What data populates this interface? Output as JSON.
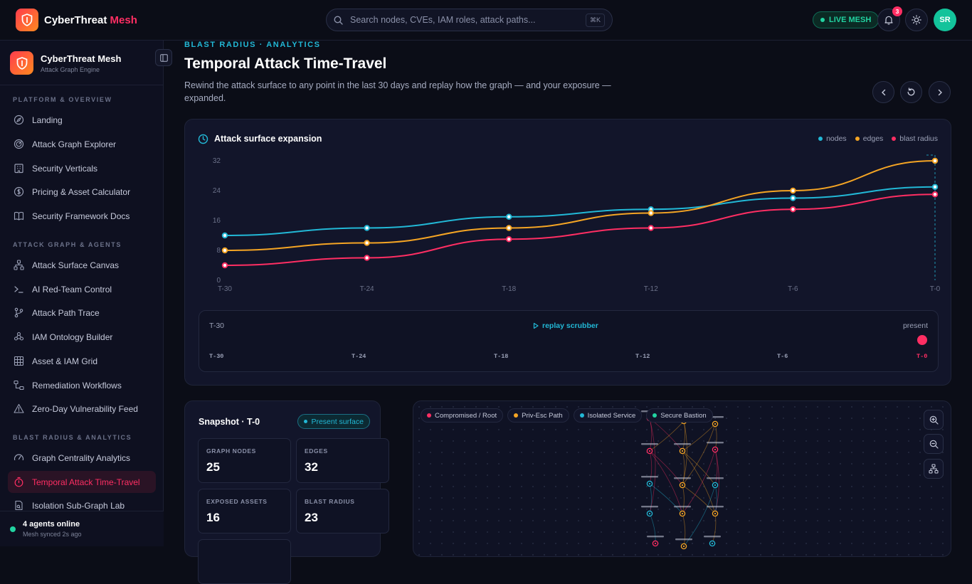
{
  "topbar": {
    "brand_main": "CyberThreat",
    "brand_accent": "Mesh",
    "search_placeholder": "Search nodes, CVEs, IAM roles, attack paths...",
    "search_kbd": "⌘K",
    "live_label": "LIVE MESH",
    "notifications_count": "3",
    "avatar_initials": "SR"
  },
  "sidebar": {
    "title": "CyberThreat Mesh",
    "subtitle": "Attack Graph Engine",
    "sections": [
      {
        "label": "PLATFORM & OVERVIEW",
        "items": [
          {
            "label": "Landing",
            "icon": "compass-icon"
          },
          {
            "label": "Attack Graph Explorer",
            "icon": "radar-icon"
          },
          {
            "label": "Security Verticals",
            "icon": "building-icon"
          },
          {
            "label": "Pricing & Asset Calculator",
            "icon": "dollar-circle-icon"
          },
          {
            "label": "Security Framework Docs",
            "icon": "book-icon"
          }
        ]
      },
      {
        "label": "ATTACK GRAPH & AGENTS",
        "items": [
          {
            "label": "Attack Surface Canvas",
            "icon": "network-icon"
          },
          {
            "label": "AI Red-Team Control",
            "icon": "terminal-icon"
          },
          {
            "label": "Attack Path Trace",
            "icon": "git-branch-icon"
          },
          {
            "label": "IAM Ontology Builder",
            "icon": "users-icon"
          },
          {
            "label": "Asset & IAM Grid",
            "icon": "grid-icon"
          },
          {
            "label": "Remediation Workflows",
            "icon": "workflow-icon"
          },
          {
            "label": "Zero-Day Vulnerability Feed",
            "icon": "warning-icon"
          }
        ]
      },
      {
        "label": "BLAST RADIUS & ANALYTICS",
        "items": [
          {
            "label": "Graph Centrality Analytics",
            "icon": "gauge-icon"
          },
          {
            "label": "Temporal Attack Time-Travel",
            "icon": "stopwatch-icon",
            "active": true
          },
          {
            "label": "Isolation Sub-Graph Lab",
            "icon": "flask-icon"
          }
        ]
      }
    ],
    "footer_status": "4 agents online",
    "footer_sub": "Mesh synced 2s ago"
  },
  "main": {
    "eyebrow": "BLAST RADIUS · ANALYTICS",
    "title": "Temporal Attack Time-Travel",
    "description": "Rewind the attack surface to any point in the last 30 days and replay how the graph — and your exposure — expanded."
  },
  "chart_card": {
    "title": "Attack surface expansion",
    "legend": [
      "nodes",
      "edges",
      "blast radius"
    ]
  },
  "chart_data": {
    "type": "line",
    "title": "Attack surface expansion",
    "x": [
      "T-30",
      "T-24",
      "T-18",
      "T-12",
      "T-6",
      "T-0"
    ],
    "ylim": [
      0,
      32
    ],
    "yticks": [
      0,
      8,
      16,
      24,
      32
    ],
    "grid": false,
    "legend_position": "top-right",
    "series": [
      {
        "name": "nodes",
        "color": "#22b8d6",
        "values": [
          12,
          14,
          17,
          19,
          22,
          25
        ]
      },
      {
        "name": "edges",
        "color": "#f5a524",
        "values": [
          8,
          10,
          14,
          18,
          24,
          32
        ]
      },
      {
        "name": "blast radius",
        "color": "#ff2e63",
        "values": [
          4,
          6,
          11,
          14,
          19,
          23
        ]
      }
    ]
  },
  "scrubber": {
    "start_label": "T-30",
    "label": "replay scrubber",
    "end_label": "present",
    "ticks": [
      "T-30",
      "T-24",
      "T-18",
      "T-12",
      "T-6",
      "T-0"
    ],
    "position": 1.0
  },
  "snapshot": {
    "title": "Snapshot · T-0",
    "pill": "Present surface",
    "metrics": [
      {
        "label": "GRAPH NODES",
        "value": "25"
      },
      {
        "label": "EDGES",
        "value": "32"
      },
      {
        "label": "EXPOSED ASSETS",
        "value": "16"
      },
      {
        "label": "BLAST RADIUS",
        "value": "23"
      }
    ]
  },
  "graph": {
    "legend": [
      {
        "label": "Compromised / Root",
        "color": "#ff2e63"
      },
      {
        "label": "Priv-Esc Path",
        "color": "#f5a524"
      },
      {
        "label": "Isolated Service",
        "color": "#22b8d6"
      },
      {
        "label": "Secure Bastion",
        "color": "#22d3a1"
      }
    ]
  },
  "colors": {
    "accent": "#ff2e63",
    "cyan": "#22b8d6",
    "amber": "#f5a524",
    "green": "#22d3a1"
  }
}
